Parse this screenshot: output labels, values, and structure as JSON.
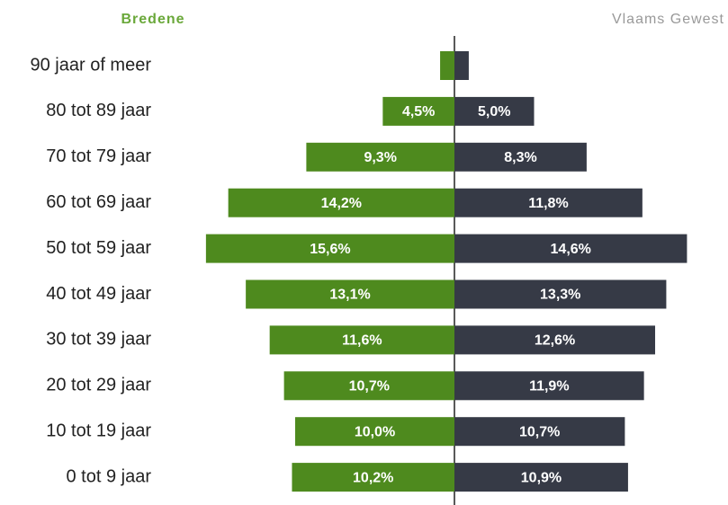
{
  "chart_data": {
    "type": "pyramid",
    "categories": [
      "90 jaar of meer",
      "80 tot 89 jaar",
      "70 tot 79 jaar",
      "60 tot 69 jaar",
      "50 tot 59 jaar",
      "40 tot 49 jaar",
      "30 tot 39 jaar",
      "20 tot 29 jaar",
      "10 tot 19 jaar",
      "0 tot 9 jaar"
    ],
    "series": [
      {
        "name": "Bredene",
        "color": "#4e8a1e",
        "side": "left",
        "values": [
          0.9,
          4.5,
          9.3,
          14.2,
          15.6,
          13.1,
          11.6,
          10.7,
          10.0,
          10.2
        ],
        "value_labels": [
          null,
          "4,5%",
          "9,3%",
          "14,2%",
          "15,6%",
          "13,1%",
          "11,6%",
          "10,7%",
          "10,0%",
          "10,2%"
        ]
      },
      {
        "name": "Vlaams Gewest",
        "color": "#363a46",
        "side": "right",
        "values": [
          0.9,
          5.0,
          8.3,
          11.8,
          14.6,
          13.3,
          12.6,
          11.9,
          10.7,
          10.9
        ],
        "value_labels": [
          null,
          "5,0%",
          "8,3%",
          "11,8%",
          "14,6%",
          "13,3%",
          "12,6%",
          "11,9%",
          "10,7%",
          "10,9%"
        ]
      }
    ]
  }
}
